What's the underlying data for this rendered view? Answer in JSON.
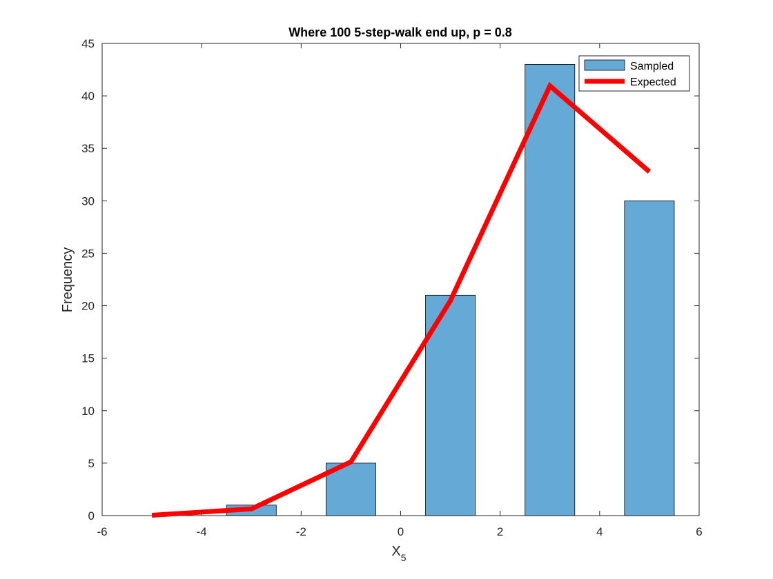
{
  "chart_data": {
    "type": "bar",
    "title": "Where 100 5-step-walk end up, p = 0.8",
    "xlabel": "X",
    "xlabel_subscript": "5",
    "ylabel": "Frequency",
    "xlim": [
      -6,
      6
    ],
    "ylim": [
      0,
      45
    ],
    "xticks": [
      -6,
      -4,
      -2,
      0,
      2,
      4,
      6
    ],
    "yticks": [
      0,
      5,
      10,
      15,
      20,
      25,
      30,
      35,
      40,
      45
    ],
    "grid": false,
    "legend_position": "top-right",
    "series": [
      {
        "name": "Sampled",
        "kind": "bar",
        "color": "#65a9d7",
        "edge_color": "#000000",
        "bar_width": 1,
        "x": [
          -5,
          -3,
          -1,
          1,
          3,
          5
        ],
        "values": [
          0,
          1,
          5,
          21,
          43,
          30
        ]
      },
      {
        "name": "Expected",
        "kind": "line",
        "color": "#ff0000",
        "x": [
          -5,
          -3,
          -1,
          1,
          3,
          5
        ],
        "values": [
          0.032,
          0.64,
          5.12,
          20.48,
          40.96,
          32.768
        ]
      }
    ]
  }
}
